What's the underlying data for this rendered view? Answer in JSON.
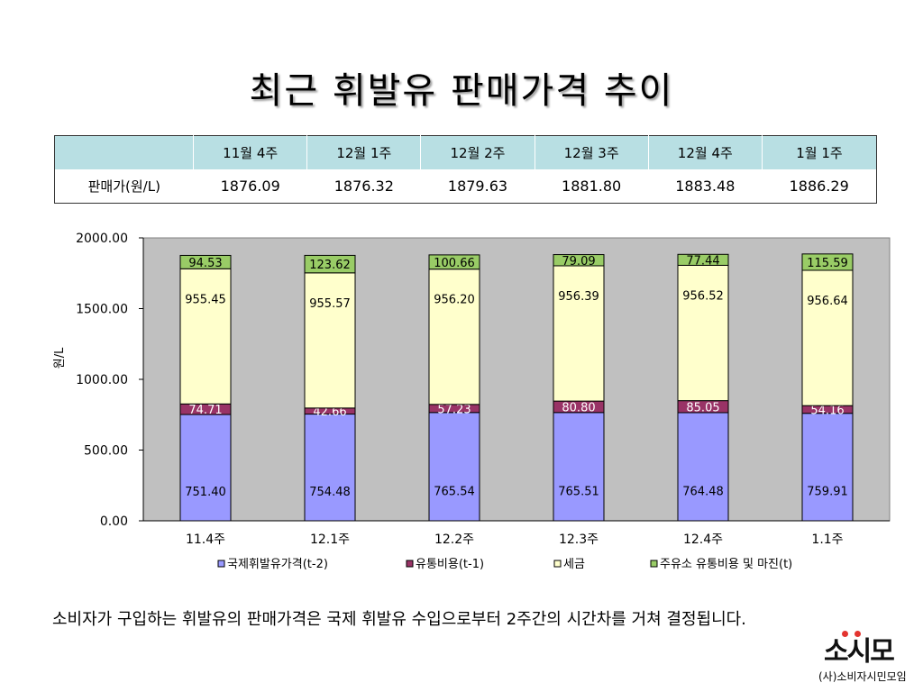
{
  "title": "최근 휘발유 판매가격 추이",
  "table": {
    "corner": "",
    "headers": [
      "11월 4주",
      "12월 1주",
      "12월 2주",
      "12월 3주",
      "12월 4주",
      "1월 1주"
    ],
    "row_label": "판매가(원/L)",
    "values": [
      "1876.09",
      "1876.32",
      "1879.63",
      "1881.80",
      "1883.48",
      "1886.29"
    ]
  },
  "chart_data": {
    "type": "bar",
    "stacked": true,
    "categories": [
      "11.4주",
      "12.1주",
      "12.2주",
      "12.3주",
      "12.4주",
      "1.1주"
    ],
    "series": [
      {
        "name": "국제휘발유가격(t-2)",
        "color": "#9999ff",
        "values": [
          751.4,
          754.48,
          765.54,
          765.51,
          764.48,
          759.91
        ]
      },
      {
        "name": "유통비용(t-1)",
        "color": "#993366",
        "values": [
          74.71,
          42.66,
          57.23,
          80.8,
          85.05,
          54.16
        ]
      },
      {
        "name": "세금",
        "color": "#ffffcc",
        "values": [
          955.45,
          955.57,
          956.2,
          956.39,
          956.52,
          956.64
        ]
      },
      {
        "name": "주유소 유통비용 및 마진(t)",
        "color": "#99cc66",
        "values": [
          94.53,
          123.62,
          100.66,
          79.09,
          77.44,
          115.59
        ]
      }
    ],
    "data_labels": [
      [
        "751.40",
        "754.48",
        "765.54",
        "765.51",
        "764.48",
        "759.91"
      ],
      [
        "74.71",
        "42.66",
        "57.23",
        "80.80",
        "85.05",
        "54.16"
      ],
      [
        "955.45",
        "955.57",
        "956.20",
        "956.39",
        "956.52",
        "956.64"
      ],
      [
        "94.53",
        "123.62",
        "100.66",
        "79.09",
        "77.44",
        "115.59"
      ]
    ],
    "ylabel": "원/L",
    "xlabel": "",
    "ylim": [
      0,
      2000
    ],
    "yticks": [
      "0.00",
      "500.00",
      "1000.00",
      "1500.00",
      "2000.00"
    ],
    "grid": false,
    "legend_position": "bottom",
    "plot_background": "#c0c0c0"
  },
  "caption": "소비자가 구입하는 휘발유의 판매가격은 국제 휘발유 수입으로부터 2주간의 시간차를 거쳐 결정됩니다.",
  "logo": {
    "mark": "소시모",
    "org": "(사)소비자시민모임"
  }
}
